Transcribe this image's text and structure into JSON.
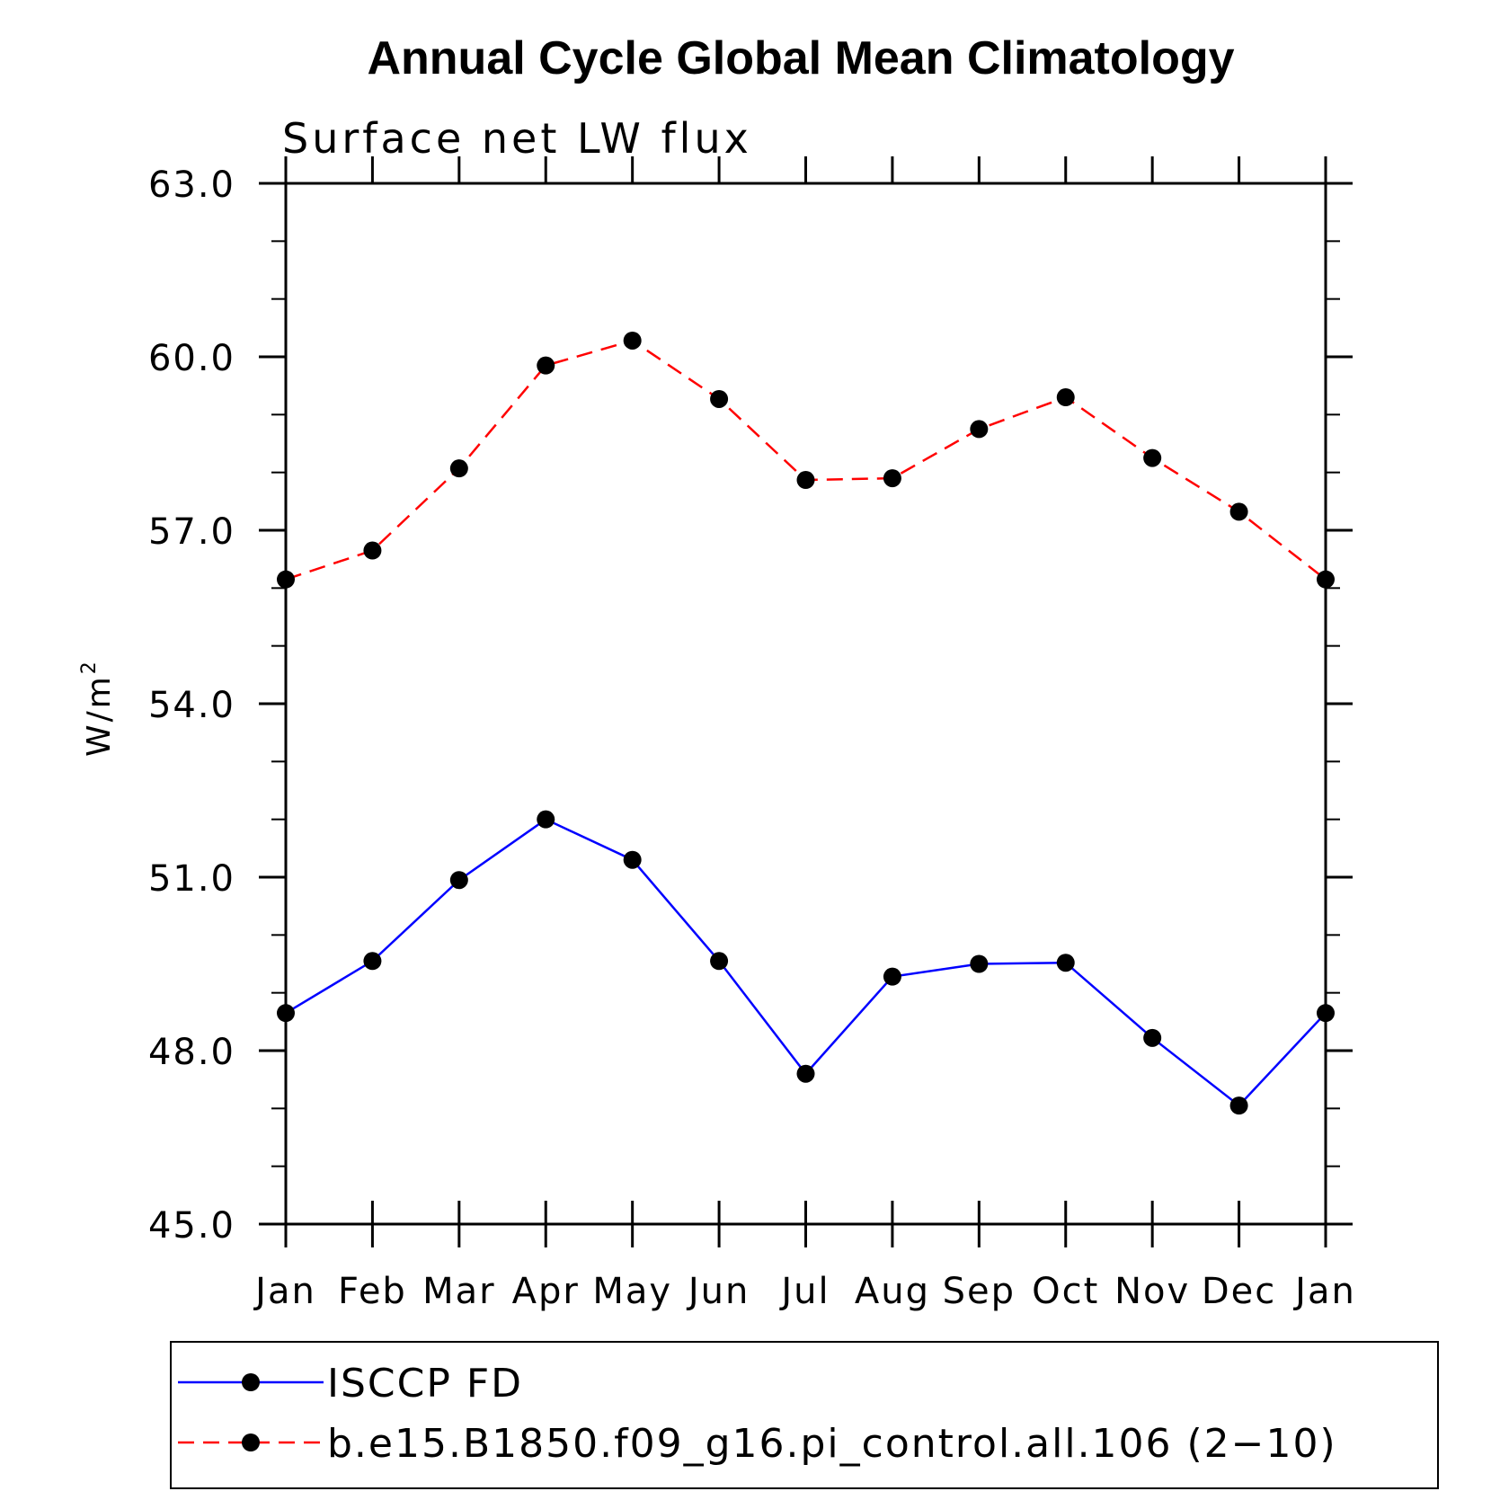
{
  "chart_data": {
    "type": "line",
    "title": "Annual Cycle Global Mean Climatology",
    "subtitle": "Surface net LW flux",
    "ylabel": "W/m",
    "ylabel_sup": "2",
    "ylim": [
      45.0,
      63.0
    ],
    "yticks": [
      "45.0",
      "48.0",
      "51.0",
      "54.0",
      "57.0",
      "60.0",
      "63.0"
    ],
    "categories": [
      "Jan",
      "Feb",
      "Mar",
      "Apr",
      "May",
      "Jun",
      "Jul",
      "Aug",
      "Sep",
      "Oct",
      "Nov",
      "Dec",
      "Jan"
    ],
    "series": [
      {
        "name": "ISCCP FD",
        "color": "#0000ff",
        "dash": "solid",
        "values": [
          48.65,
          49.55,
          50.95,
          52.0,
          51.3,
          49.55,
          47.6,
          49.28,
          49.5,
          49.52,
          48.22,
          47.05,
          48.65
        ]
      },
      {
        "name": "b.e15.B1850.f09_g16.pi_control.all.106 (2−10)",
        "color": "#ff0000",
        "dash": "dashed",
        "values": [
          56.15,
          56.65,
          58.07,
          59.85,
          60.28,
          59.27,
          57.87,
          57.9,
          58.75,
          59.3,
          58.25,
          57.32,
          56.15
        ]
      }
    ],
    "grid": false,
    "legend_position": "bottom"
  }
}
